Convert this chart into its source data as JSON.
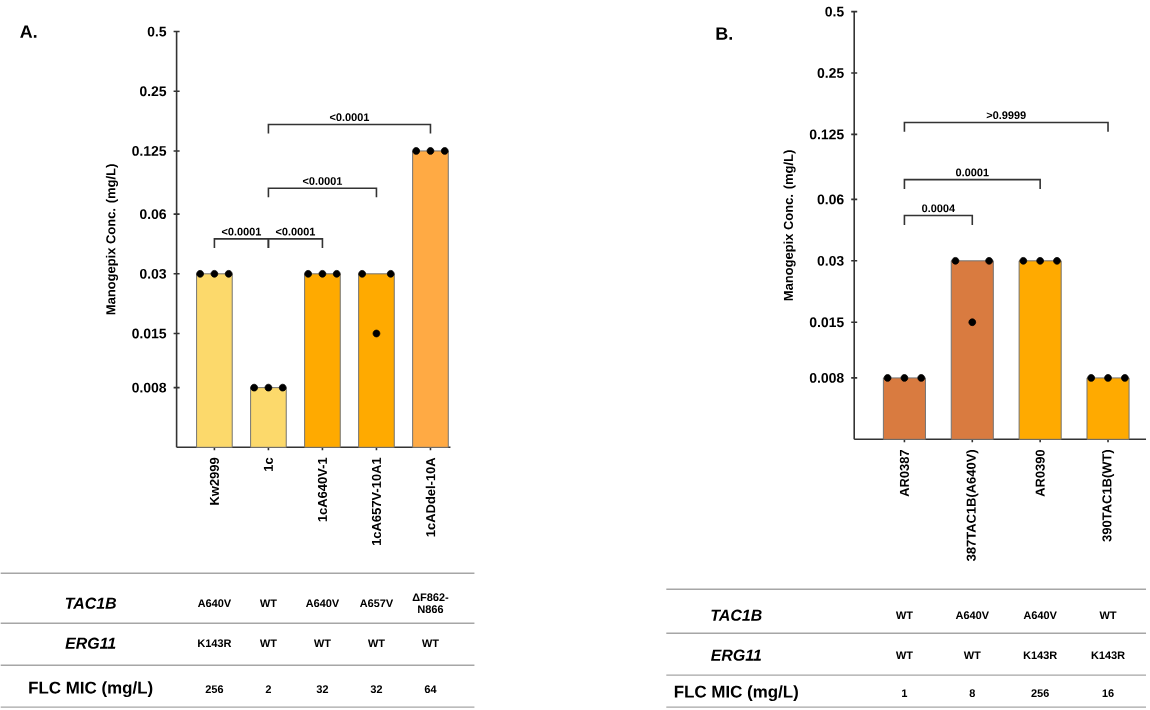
{
  "chart_data": [
    {
      "type": "bar",
      "title": "A.",
      "ylabel": "Manogepix Conc. (mg/L)",
      "log": "y",
      "categories": [
        "Kw2999",
        "1c",
        "1cA640V-1",
        "1cA657V-10A1",
        "1cADdel-10A"
      ],
      "series": [
        {
          "type": "bar",
          "values": [
            0.03,
            0.008,
            0.03,
            0.03,
            0.125
          ],
          "colors": [
            "#fcd96b",
            "#fcd96b",
            "#ffaa00",
            "#ffaa00",
            "#ffaa44"
          ]
        },
        {
          "type": "scatter",
          "color": "#000000",
          "marker": "circle",
          "x": [
            "Kw2999",
            "Kw2999",
            "Kw2999",
            "1c",
            "1c",
            "1c",
            "1cA640V-1",
            "1cA640V-1",
            "1cA640V-1",
            "1cA657V-10A1",
            "1cA657V-10A1",
            "1cA657V-10A1",
            "1cADdel-10A",
            "1cADdel-10A",
            "1cADdel-10A"
          ],
          "values": [
            0.03,
            0.03,
            0.03,
            0.008,
            0.008,
            0.008,
            0.03,
            0.03,
            0.03,
            0.03,
            0.015,
            0.03,
            0.125,
            0.125,
            0.125
          ]
        }
      ],
      "ylim": [
        0.004,
        0.5
      ],
      "yticks": [
        0.008,
        0.015,
        0.03,
        0.06,
        0.125,
        0.25,
        0.5
      ],
      "annotations": [
        "<0.0001",
        "<0.0001",
        "<0.0001",
        "<0.0001",
        "TAC1B",
        "A640V",
        "WT",
        "A640V",
        "A657V",
        "ΔF862-N866",
        "ERG11",
        "K143R",
        "WT",
        "WT",
        "WT",
        "WT",
        "FLC MIC (mg/L)",
        "256",
        "2",
        "32",
        "32",
        "64"
      ]
    },
    {
      "type": "bar",
      "title": "B.",
      "ylabel": "Manogepix Conc. (mg/L)",
      "log": "y",
      "categories": [
        "AR0387",
        "387TAC1B(A640V)",
        "AR0390",
        "390TAC1B(WT)"
      ],
      "series": [
        {
          "type": "bar",
          "values": [
            0.008,
            0.03,
            0.03,
            0.008
          ],
          "colors": [
            "#d97b40",
            "#d97b40",
            "#ffaa00",
            "#ffaa00"
          ]
        },
        {
          "type": "scatter",
          "color": "#000000",
          "marker": "circle",
          "x": [
            "AR0387",
            "AR0387",
            "AR0387",
            "387TAC1B(A640V)",
            "387TAC1B(A640V)",
            "387TAC1B(A640V)",
            "AR0390",
            "AR0390",
            "AR0390",
            "390TAC1B(WT)",
            "390TAC1B(WT)",
            "390TAC1B(WT)"
          ],
          "values": [
            0.008,
            0.008,
            0.008,
            0.03,
            0.015,
            0.03,
            0.03,
            0.03,
            0.03,
            0.008,
            0.008,
            0.008
          ]
        }
      ],
      "ylim": [
        0.004,
        0.5
      ],
      "yticks": [
        0.008,
        0.015,
        0.03,
        0.06,
        0.125,
        0.25,
        0.5
      ],
      "annotations": [
        "0.0004",
        "0.0001",
        ">0.9999",
        "TAC1B",
        "WT",
        "A640V",
        "A640V",
        "WT",
        "ERG11",
        "WT",
        "WT",
        "K143R",
        "K143R",
        "FLC MIC (mg/L)",
        "1",
        "8",
        "256",
        "16"
      ]
    }
  ]
}
